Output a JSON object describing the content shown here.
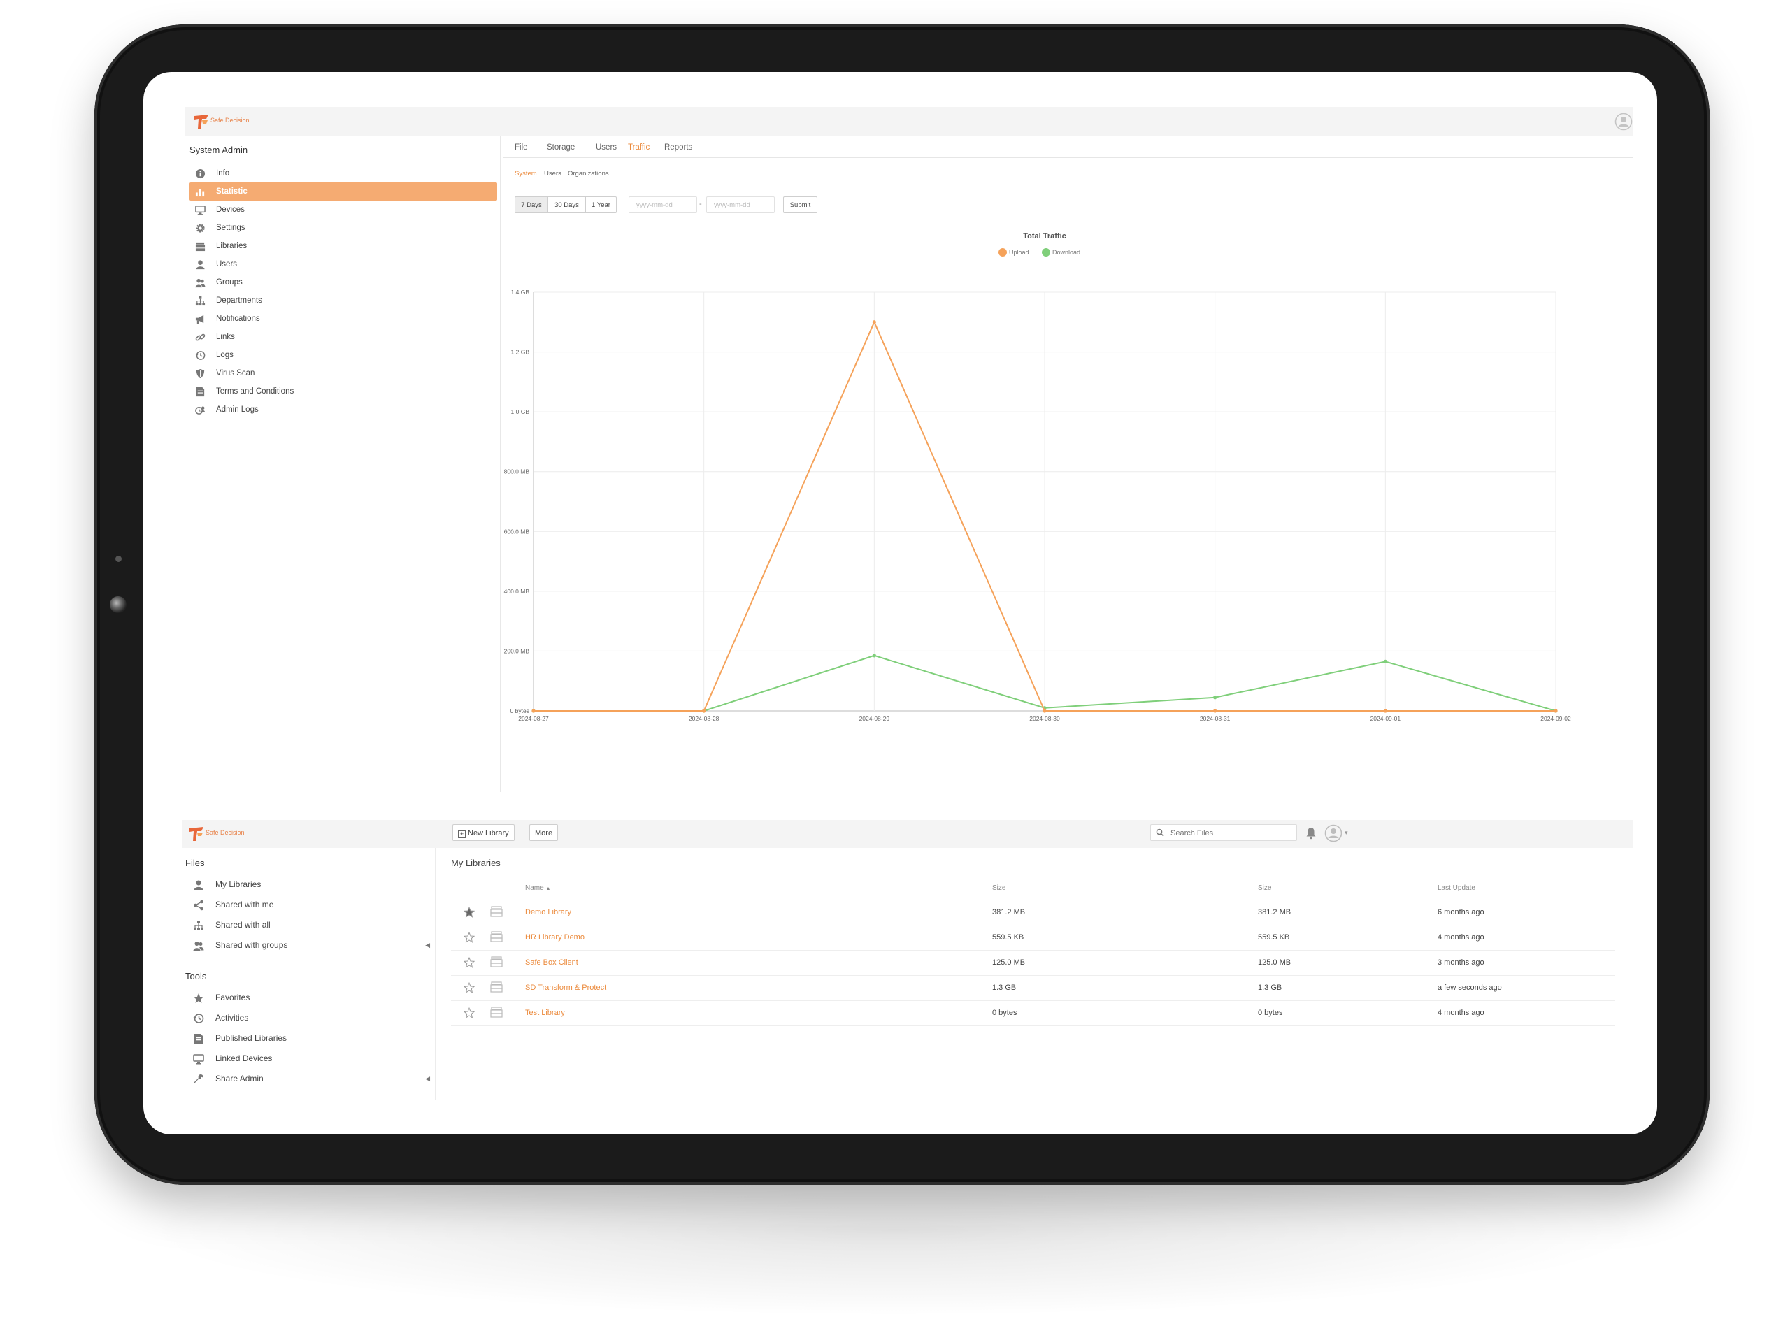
{
  "brand": {
    "name": "Safe Decision",
    "accent": "#eb8a3c"
  },
  "admin": {
    "sidebar_title": "System Admin",
    "nav": [
      {
        "label": "Info",
        "icon": "info-icon"
      },
      {
        "label": "Statistic",
        "icon": "bar-chart-icon",
        "active": true
      },
      {
        "label": "Devices",
        "icon": "monitor-icon"
      },
      {
        "label": "Settings",
        "icon": "gear-icon"
      },
      {
        "label": "Libraries",
        "icon": "library-icon"
      },
      {
        "label": "Users",
        "icon": "user-icon"
      },
      {
        "label": "Groups",
        "icon": "group-icon"
      },
      {
        "label": "Departments",
        "icon": "org-icon"
      },
      {
        "label": "Notifications",
        "icon": "megaphone-icon"
      },
      {
        "label": "Links",
        "icon": "link-icon"
      },
      {
        "label": "Logs",
        "icon": "history-icon"
      },
      {
        "label": "Virus Scan",
        "icon": "shield-icon"
      },
      {
        "label": "Terms and Conditions",
        "icon": "document-icon"
      },
      {
        "label": "Admin Logs",
        "icon": "admin-log-icon"
      }
    ],
    "tabs": [
      "File",
      "Storage",
      "Users",
      "Traffic",
      "Reports"
    ],
    "active_tab": "Traffic",
    "subtabs": [
      "System",
      "Users",
      "Organizations"
    ],
    "active_subtab": "System",
    "range_buttons": [
      "7 Days",
      "30 Days",
      "1 Year"
    ],
    "date_placeholder": "yyyy-mm-dd",
    "date_separator": "-",
    "submit_label": "Submit"
  },
  "chart_data": {
    "type": "line",
    "title": "Total Traffic",
    "x": [
      "2024-08-27",
      "2024-08-28",
      "2024-08-29",
      "2024-08-30",
      "2024-08-31",
      "2024-09-01",
      "2024-09-02"
    ],
    "y_ticks": [
      "0 bytes",
      "200.0 MB",
      "400.0 MB",
      "600.0 MB",
      "800.0 MB",
      "1.0 GB",
      "1.2 GB",
      "1.4 GB"
    ],
    "ylim_mb": [
      0,
      1400
    ],
    "unit": "MB",
    "series": [
      {
        "name": "Upload",
        "color": "#f5a25a",
        "values": [
          0,
          0,
          1300,
          0,
          0,
          0,
          0
        ]
      },
      {
        "name": "Download",
        "color": "#7fcf7a",
        "values": [
          0,
          0,
          185,
          10,
          45,
          165,
          0
        ]
      }
    ],
    "legend": "top-center",
    "grid": true
  },
  "files": {
    "buttons": {
      "new_library": "New Library",
      "more": "More"
    },
    "search_placeholder": "Search Files",
    "group_files": "Files",
    "files_nav": [
      {
        "label": "My Libraries",
        "icon": "user-icon"
      },
      {
        "label": "Shared with me",
        "icon": "share-icon"
      },
      {
        "label": "Shared with all",
        "icon": "org-icon"
      },
      {
        "label": "Shared with groups",
        "icon": "group-icon",
        "expandable": true
      }
    ],
    "group_tools": "Tools",
    "tools_nav": [
      {
        "label": "Favorites",
        "icon": "star-icon"
      },
      {
        "label": "Activities",
        "icon": "history-icon"
      },
      {
        "label": "Published Libraries",
        "icon": "document-icon"
      },
      {
        "label": "Linked Devices",
        "icon": "monitor-icon"
      },
      {
        "label": "Share Admin",
        "icon": "wrench-icon",
        "expandable": true
      }
    ],
    "title": "My Libraries",
    "columns": [
      "Name",
      "Size",
      "Size",
      "Last Update"
    ],
    "sort_indicator": "▲",
    "rows": [
      {
        "name": "Demo Library",
        "size": "381.2 MB",
        "size2": "381.2 MB",
        "updated": "6 months ago",
        "starred": true
      },
      {
        "name": "HR Library Demo",
        "size": "559.5 KB",
        "size2": "559.5 KB",
        "updated": "4 months ago",
        "starred": false
      },
      {
        "name": "Safe Box Client",
        "size": "125.0 MB",
        "size2": "125.0 MB",
        "updated": "3 months ago",
        "starred": false
      },
      {
        "name": "SD Transform & Protect",
        "size": "1.3 GB",
        "size2": "1.3 GB",
        "updated": "a few seconds ago",
        "starred": false
      },
      {
        "name": "Test Library",
        "size": "0 bytes",
        "size2": "0 bytes",
        "updated": "4 months ago",
        "starred": false
      }
    ]
  }
}
